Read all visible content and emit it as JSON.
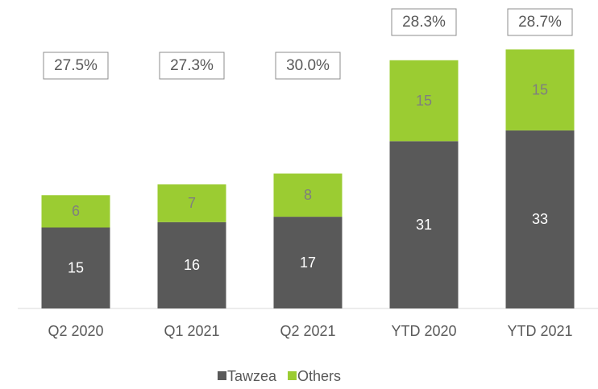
{
  "chart_data": {
    "type": "stacked_bar",
    "categories": [
      "Q2 2020",
      "Q1 2021",
      "Q2 2021",
      "YTD 2020",
      "YTD 2021"
    ],
    "series": [
      {
        "name": "Tawzea",
        "color": "#595959",
        "values": [
          15,
          16,
          17,
          31,
          33
        ]
      },
      {
        "name": "Others",
        "color": "#9bcc32",
        "values": [
          6,
          7,
          8,
          15,
          15
        ]
      }
    ],
    "annotations": [
      "27.5%",
      "27.3%",
      "30.0%",
      "28.3%",
      "28.7%"
    ],
    "legend": "bottom"
  }
}
